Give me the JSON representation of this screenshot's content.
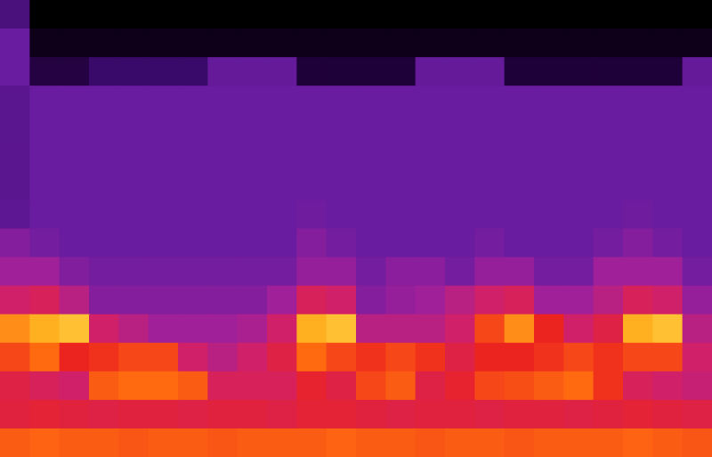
{
  "chart_data": {
    "type": "heatmap",
    "tick_labels": false,
    "zlim": [
      0,
      1
    ],
    "cells": [
      [
        0.3,
        0,
        0,
        0,
        0,
        0,
        0,
        0,
        0,
        0,
        0,
        0,
        0,
        0,
        0,
        0,
        0,
        0,
        0,
        0,
        0,
        0,
        0,
        0
      ],
      [
        0.4,
        0.05,
        0.05,
        0.05,
        0.05,
        0.05,
        0.05,
        0.05,
        0.05,
        0.05,
        0.05,
        0.05,
        0.05,
        0.05,
        0.05,
        0.05,
        0.05,
        0.05,
        0.05,
        0.05,
        0.05,
        0.05,
        0.05,
        0.05
      ],
      [
        0.4,
        0.15,
        0.15,
        0.25,
        0.25,
        0.25,
        0.25,
        0.38,
        0.38,
        0.38,
        0.12,
        0.12,
        0.12,
        0.12,
        0.38,
        0.38,
        0.38,
        0.12,
        0.12,
        0.12,
        0.12,
        0.12,
        0.12,
        0.38
      ],
      [
        0.35,
        0.4,
        0.4,
        0.4,
        0.4,
        0.4,
        0.4,
        0.4,
        0.4,
        0.4,
        0.4,
        0.4,
        0.4,
        0.4,
        0.4,
        0.4,
        0.4,
        0.4,
        0.4,
        0.4,
        0.4,
        0.4,
        0.4,
        0.4
      ],
      [
        0.35,
        0.4,
        0.4,
        0.4,
        0.4,
        0.4,
        0.4,
        0.4,
        0.4,
        0.4,
        0.4,
        0.4,
        0.4,
        0.4,
        0.4,
        0.4,
        0.4,
        0.4,
        0.4,
        0.4,
        0.4,
        0.4,
        0.4,
        0.4
      ],
      [
        0.35,
        0.4,
        0.4,
        0.4,
        0.4,
        0.4,
        0.4,
        0.4,
        0.4,
        0.4,
        0.4,
        0.4,
        0.4,
        0.4,
        0.4,
        0.4,
        0.4,
        0.4,
        0.4,
        0.4,
        0.4,
        0.4,
        0.4,
        0.4
      ],
      [
        0.35,
        0.4,
        0.4,
        0.4,
        0.4,
        0.4,
        0.4,
        0.4,
        0.4,
        0.4,
        0.4,
        0.4,
        0.4,
        0.4,
        0.4,
        0.4,
        0.4,
        0.4,
        0.4,
        0.4,
        0.4,
        0.4,
        0.4,
        0.4
      ],
      [
        0.36,
        0.4,
        0.4,
        0.4,
        0.4,
        0.4,
        0.4,
        0.4,
        0.4,
        0.4,
        0.41,
        0.4,
        0.4,
        0.4,
        0.4,
        0.4,
        0.4,
        0.4,
        0.4,
        0.4,
        0.4,
        0.41,
        0.4,
        0.4
      ],
      [
        0.45,
        0.42,
        0.4,
        0.4,
        0.4,
        0.4,
        0.4,
        0.4,
        0.4,
        0.4,
        0.45,
        0.42,
        0.4,
        0.4,
        0.4,
        0.4,
        0.42,
        0.4,
        0.4,
        0.4,
        0.42,
        0.45,
        0.42,
        0.4
      ],
      [
        0.5,
        0.5,
        0.44,
        0.42,
        0.42,
        0.42,
        0.42,
        0.42,
        0.42,
        0.42,
        0.48,
        0.48,
        0.42,
        0.46,
        0.46,
        0.42,
        0.48,
        0.48,
        0.42,
        0.42,
        0.5,
        0.5,
        0.5,
        0.42
      ],
      [
        0.6,
        0.62,
        0.55,
        0.45,
        0.45,
        0.45,
        0.45,
        0.45,
        0.45,
        0.5,
        0.62,
        0.6,
        0.45,
        0.48,
        0.5,
        0.55,
        0.6,
        0.62,
        0.5,
        0.5,
        0.55,
        0.62,
        0.6,
        0.48
      ],
      [
        0.85,
        0.9,
        0.92,
        0.6,
        0.55,
        0.5,
        0.5,
        0.5,
        0.52,
        0.6,
        0.9,
        0.92,
        0.55,
        0.55,
        0.55,
        0.6,
        0.75,
        0.85,
        0.7,
        0.6,
        0.65,
        0.9,
        0.92,
        0.55
      ],
      [
        0.75,
        0.8,
        0.7,
        0.72,
        0.75,
        0.75,
        0.6,
        0.55,
        0.6,
        0.65,
        0.8,
        0.75,
        0.72,
        0.75,
        0.72,
        0.65,
        0.7,
        0.7,
        0.72,
        0.75,
        0.72,
        0.75,
        0.75,
        0.6
      ],
      [
        0.65,
        0.62,
        0.6,
        0.78,
        0.8,
        0.8,
        0.78,
        0.62,
        0.62,
        0.62,
        0.68,
        0.65,
        0.75,
        0.78,
        0.65,
        0.68,
        0.75,
        0.76,
        0.78,
        0.8,
        0.72,
        0.62,
        0.6,
        0.58
      ],
      [
        0.66,
        0.67,
        0.66,
        0.65,
        0.66,
        0.66,
        0.65,
        0.66,
        0.66,
        0.65,
        0.67,
        0.67,
        0.66,
        0.65,
        0.66,
        0.66,
        0.65,
        0.66,
        0.66,
        0.65,
        0.66,
        0.67,
        0.66,
        0.65
      ],
      [
        0.78,
        0.79,
        0.78,
        0.78,
        0.77,
        0.78,
        0.78,
        0.77,
        0.78,
        0.78,
        0.78,
        0.79,
        0.78,
        0.78,
        0.77,
        0.78,
        0.78,
        0.77,
        0.78,
        0.78,
        0.78,
        0.79,
        0.78,
        0.77
      ]
    ]
  }
}
